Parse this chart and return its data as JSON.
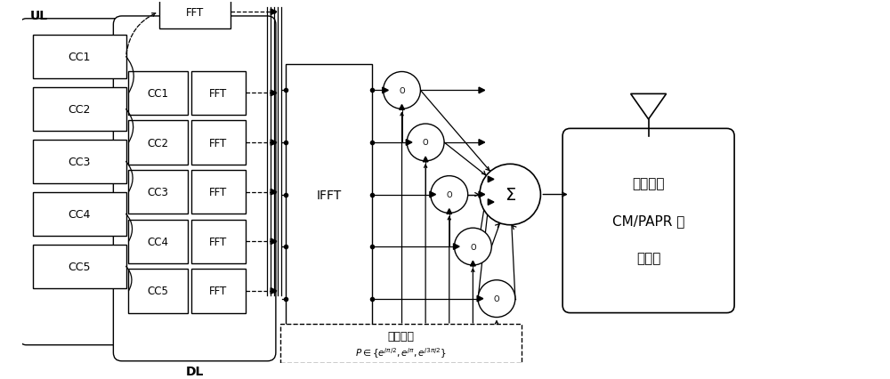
{
  "bg_color": "#ffffff",
  "line_color": "#000000",
  "ul_label": "UL",
  "dl_label": "DL",
  "ul_cc_labels": [
    "CC1",
    "CC2",
    "CC3",
    "CC4",
    "CC5"
  ],
  "dl_cc_labels": [
    "CC1",
    "CC2",
    "CC3",
    "CC4",
    "CC5"
  ],
  "fft_label": "FFT",
  "ifft_label": "IFFT",
  "sum_label": "Σ",
  "phase_title": "相位旋转",
  "output_line1": "具有最小",
  "output_line2": "CM/PAPR 的",
  "output_line3": "发射侧",
  "figsize": [
    10.0,
    4.27
  ],
  "dpi": 100
}
